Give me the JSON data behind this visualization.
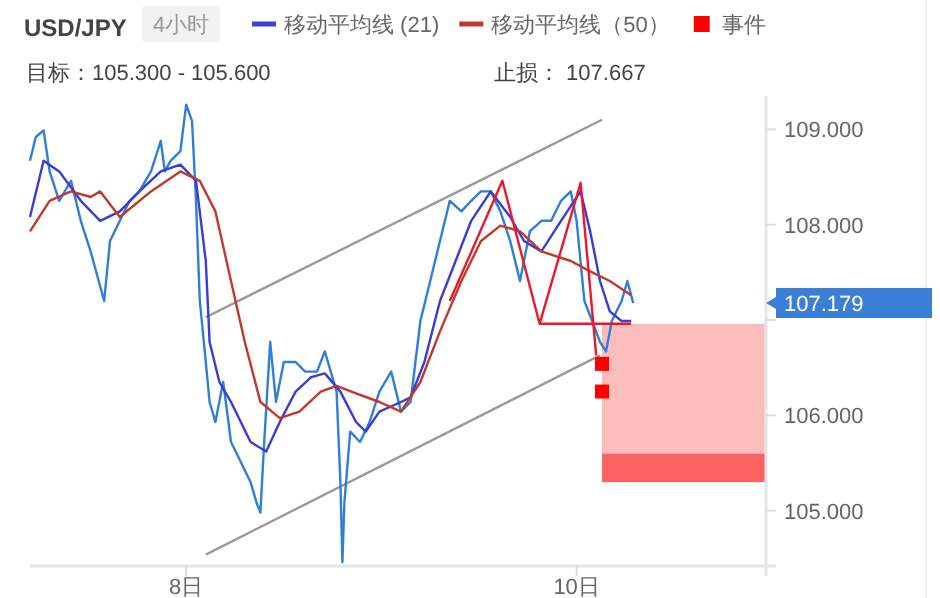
{
  "chart_data": {
    "type": "line",
    "title": "USD/JPY",
    "subtitle": "4小时",
    "annotations": [
      "目标：105.300 - 105.600",
      "止损： 107.667",
      "107.179"
    ],
    "bands": [
      {
        "axis": "y",
        "from": 105.6,
        "to": 106.96,
        "color": "#fbbcbc"
      },
      {
        "axis": "y",
        "from": 105.3,
        "to": 105.6,
        "color": "#fc6262"
      }
    ],
    "xlim": [
      7.2,
      10.97
    ],
    "xticks": [
      {
        "value": 8,
        "label": "8日"
      },
      {
        "value": 10,
        "label": "10日"
      }
    ],
    "ylim": [
      104.42,
      109.35
    ],
    "yticks": [
      {
        "value": 105,
        "label": "105.000"
      },
      {
        "value": 106,
        "label": "106.000"
      },
      {
        "value": 107,
        "label": null
      },
      {
        "value": 108,
        "label": "108.000"
      },
      {
        "value": 109,
        "label": "109.000"
      }
    ],
    "grid": false,
    "legend": "top",
    "tick_labels": true,
    "series": [
      {
        "type": "line",
        "color": "#999999",
        "x": [
          8.1,
          10.13
        ],
        "values": [
          107.03,
          109.1
        ]
      },
      {
        "type": "line",
        "color": "#999999",
        "x": [
          8.1,
          10.12
        ],
        "values": [
          104.54,
          106.63
        ]
      },
      {
        "color": "#2f7fd8",
        "x": [
          7.2,
          7.23,
          7.27,
          7.3,
          7.35,
          7.41,
          7.46,
          7.51,
          7.58,
          7.61,
          7.66,
          7.71,
          7.76,
          7.82,
          7.87,
          7.89,
          7.92,
          7.97,
          8.0,
          8.03,
          8.05,
          8.07,
          8.1,
          8.12,
          8.15,
          8.19,
          8.23,
          8.28,
          8.33,
          8.36,
          8.38,
          8.4,
          8.43,
          8.46,
          8.5,
          8.56,
          8.61,
          8.67,
          8.71,
          8.77,
          8.79,
          8.8,
          8.81,
          8.84,
          8.89,
          8.94,
          8.99,
          9.05,
          9.1,
          9.15,
          9.2,
          9.25,
          9.3,
          9.35,
          9.41,
          9.46,
          9.51,
          9.56,
          9.61,
          9.66,
          9.71,
          9.76,
          9.82,
          9.87,
          9.92,
          9.97,
          10.0,
          10.04,
          10.08,
          10.12,
          10.15,
          10.18,
          10.23,
          10.26,
          10.29
        ],
        "values": [
          108.67,
          108.92,
          108.99,
          108.56,
          108.25,
          108.46,
          108.04,
          107.72,
          107.2,
          107.83,
          108.04,
          108.25,
          108.35,
          108.56,
          108.88,
          108.56,
          108.67,
          108.77,
          109.26,
          109.09,
          108.25,
          107.2,
          106.56,
          106.14,
          105.93,
          106.35,
          105.72,
          105.51,
          105.3,
          105.09,
          104.98,
          105.72,
          106.77,
          106.14,
          106.56,
          106.56,
          106.46,
          106.46,
          106.67,
          106.25,
          105.3,
          104.46,
          105.09,
          105.83,
          105.72,
          105.93,
          106.25,
          106.46,
          106.04,
          106.14,
          106.99,
          107.41,
          107.83,
          108.25,
          108.14,
          108.25,
          108.35,
          108.35,
          108.14,
          107.83,
          107.41,
          107.93,
          108.04,
          108.04,
          108.25,
          108.35,
          108.04,
          107.2,
          106.99,
          106.77,
          106.67,
          106.99,
          107.2,
          107.41,
          107.179
        ]
      },
      {
        "type": "line",
        "name": "移动平均线 (21)",
        "color": "#3b3bd6",
        "x": [
          7.2,
          7.27,
          7.35,
          7.46,
          7.56,
          7.66,
          7.76,
          7.87,
          7.97,
          8.05,
          8.1,
          8.12,
          8.17,
          8.23,
          8.28,
          8.33,
          8.41,
          8.48,
          8.56,
          8.64,
          8.71,
          8.79,
          8.87,
          8.92,
          8.99,
          9.1,
          9.15,
          9.22,
          9.3,
          9.38,
          9.46,
          9.56,
          9.66,
          9.73,
          9.82,
          9.92,
          10.02,
          10.07,
          10.12,
          10.17,
          10.23,
          10.28
        ],
        "values": [
          108.08,
          108.67,
          108.56,
          108.25,
          108.04,
          108.14,
          108.35,
          108.56,
          108.63,
          108.46,
          107.62,
          106.77,
          106.35,
          106.14,
          105.93,
          105.72,
          105.62,
          105.93,
          106.25,
          106.4,
          106.44,
          106.25,
          105.93,
          105.83,
          106.04,
          106.14,
          106.19,
          106.56,
          107.2,
          107.62,
          108.04,
          108.35,
          108.08,
          107.83,
          107.72,
          108.04,
          108.35,
          107.93,
          107.41,
          107.09,
          106.99,
          106.99
        ]
      },
      {
        "type": "line",
        "name": "移动平均线（50）",
        "color": "#c0392b",
        "x": [
          7.2,
          7.3,
          7.41,
          7.51,
          7.56,
          7.66,
          7.82,
          7.97,
          8.07,
          8.15,
          8.23,
          8.3,
          8.38,
          8.48,
          8.58,
          8.69,
          8.77,
          8.87,
          8.99,
          9.1,
          9.2,
          9.3,
          9.41,
          9.51,
          9.61,
          9.71,
          9.82,
          9.97,
          10.07,
          10.17,
          10.28
        ],
        "values": [
          107.93,
          108.25,
          108.35,
          108.29,
          108.35,
          108.08,
          108.35,
          108.56,
          108.46,
          108.14,
          107.41,
          106.77,
          106.14,
          105.97,
          106.04,
          106.25,
          106.31,
          106.23,
          106.14,
          106.04,
          106.35,
          106.88,
          107.41,
          107.83,
          107.99,
          107.93,
          107.72,
          107.62,
          107.51,
          107.41,
          107.26
        ]
      },
      {
        "type": "line",
        "color": "#e8192c",
        "x": [
          9.35,
          9.62,
          9.81,
          10.02,
          10.1
        ],
        "values": [
          107.2,
          108.46,
          106.96,
          108.44,
          106.63
        ]
      },
      {
        "type": "line",
        "color": "#e8192c",
        "x": [
          9.81,
          10.28
        ],
        "values": [
          106.96,
          106.96
        ]
      },
      {
        "type": "scatter",
        "name": "事件",
        "color": "#ff0000",
        "marker": "square",
        "x": [
          10.13,
          10.13
        ],
        "values": [
          106.54,
          106.25
        ]
      }
    ]
  }
}
